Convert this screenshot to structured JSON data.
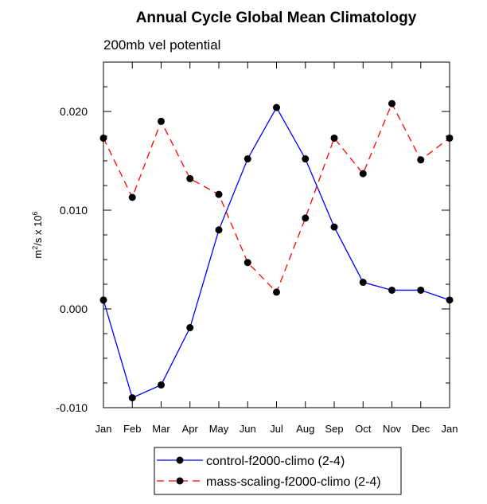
{
  "chart_data": {
    "type": "line",
    "title": "Annual Cycle Global Mean Climatology",
    "subtitle": "200mb vel potential",
    "xlabel": "",
    "ylabel": "m²/s x 10⁶",
    "ylabel_parts": {
      "base": "m",
      "sup1": "2",
      "mid": "/s x 10",
      "sup2": "6"
    },
    "categories": [
      "Jan",
      "Feb",
      "Mar",
      "Apr",
      "May",
      "Jun",
      "Jul",
      "Aug",
      "Sep",
      "Oct",
      "Nov",
      "Dec",
      "Jan"
    ],
    "ylim": [
      -0.01,
      0.025
    ],
    "yticks": [
      -0.01,
      0.0,
      0.01,
      0.02
    ],
    "ytick_labels": [
      "-0.010",
      "0.000",
      "0.010",
      "0.020"
    ],
    "series": [
      {
        "name": "control-f2000-climo (2-4)",
        "color": "#0000ff",
        "dash": "solid",
        "values": [
          0.0009,
          -0.009,
          -0.0077,
          -0.0019,
          0.008,
          0.0152,
          0.0204,
          0.0152,
          0.0083,
          0.0027,
          0.0019,
          0.0019,
          0.0009
        ]
      },
      {
        "name": "mass-scaling-f2000-climo (2-4)",
        "color": "#ff0000",
        "dash": "dashed",
        "values": [
          0.0173,
          0.0113,
          0.019,
          0.0132,
          0.0116,
          0.0047,
          0.0017,
          0.0092,
          0.0173,
          0.0137,
          0.0208,
          0.0151,
          0.0173
        ]
      }
    ],
    "legend_position": "bottom-center"
  }
}
